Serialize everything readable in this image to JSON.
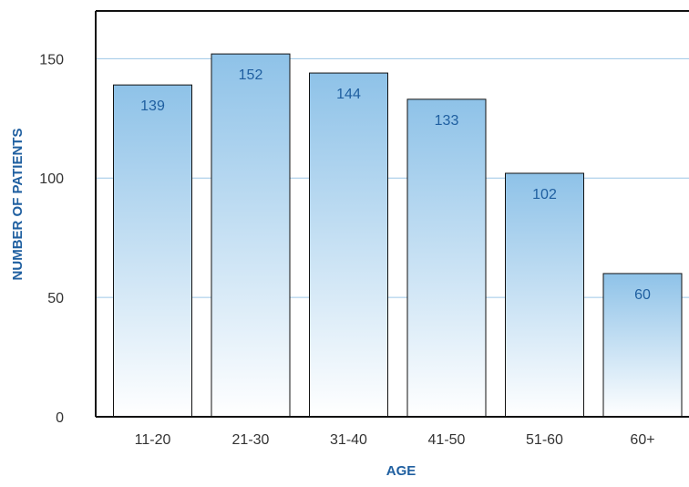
{
  "chart_data": {
    "type": "bar",
    "title": "",
    "xlabel": "AGE",
    "ylabel": "NUMBER OF PATIENTS",
    "categories": [
      "11-20",
      "21-30",
      "31-40",
      "41-50",
      "51-60",
      "60+"
    ],
    "values": [
      139,
      152,
      144,
      133,
      102,
      60
    ],
    "data_labels": [
      "139",
      "152",
      "144",
      "133",
      "102",
      "60"
    ],
    "y_ticks": [
      0,
      50,
      100,
      150
    ],
    "y_tick_labels": [
      "0",
      "50",
      "100",
      "150"
    ],
    "ylim": [
      0,
      170
    ],
    "grid": true,
    "legend": "none"
  },
  "colors": {
    "bar_top": "#8ec2e8",
    "bar_bottom": "#ffffff",
    "bar_stroke": "#111111",
    "gridline": "#9cc6e6",
    "axis_title": "#1f5fa0",
    "data_label": "#1f5fa0",
    "frame": "#111111"
  }
}
